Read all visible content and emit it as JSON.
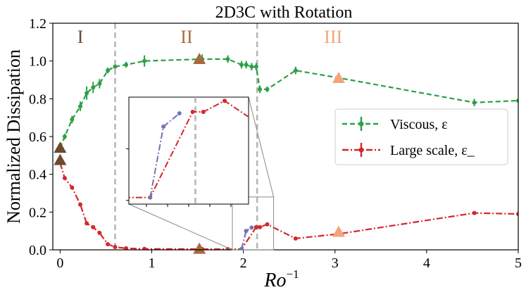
{
  "chart_data": {
    "type": "line",
    "title": "2D3C with Rotation",
    "xlabel": "Ro",
    "xlabel_sup": "−1",
    "ylabel": "Normalized Dissipation",
    "xlim": [
      -0.08,
      5.0
    ],
    "ylim": [
      0.0,
      1.2
    ],
    "xticks": [
      0,
      1,
      2,
      3,
      4,
      5
    ],
    "yticks": [
      0.0,
      0.2,
      0.4,
      0.6,
      0.8,
      1.0,
      1.2
    ],
    "xtick_labels": [
      "0",
      "1",
      "2",
      "3",
      "4",
      "5"
    ],
    "ytick_labels": [
      "0.0",
      "0.2",
      "0.4",
      "0.6",
      "0.8",
      "1.0",
      "1.2"
    ],
    "legend_position": "right",
    "vlines": [
      0.6,
      2.15
    ],
    "regions": [
      {
        "label": "I",
        "x": 0.22,
        "color": "#6b4a2f"
      },
      {
        "label": "II",
        "x": 1.38,
        "color": "#a86a3e"
      },
      {
        "label": "III",
        "x": 2.98,
        "color": "#f2a57a"
      }
    ],
    "series": [
      {
        "name": "Viscous, ε",
        "color": "#2ca048",
        "style": "dashed",
        "x": [
          0.0,
          0.05,
          0.13,
          0.22,
          0.29,
          0.36,
          0.43,
          0.52,
          0.6,
          0.72,
          0.92,
          1.55,
          1.83,
          1.98,
          2.03,
          2.09,
          2.14,
          2.18,
          2.26,
          2.57,
          3.05,
          4.52,
          5.0
        ],
        "y": [
          0.54,
          0.6,
          0.69,
          0.76,
          0.83,
          0.86,
          0.88,
          0.95,
          0.97,
          0.98,
          1.0,
          1.01,
          1.01,
          0.98,
          0.98,
          0.97,
          0.97,
          0.85,
          0.85,
          0.95,
          0.91,
          0.78,
          0.79
        ],
        "err": [
          0.02,
          0.015,
          0.02,
          0.025,
          0.035,
          0.03,
          0.025,
          0.015,
          0.01,
          0.015,
          0.03,
          0.025,
          0.02,
          0.02,
          0.02,
          0.02,
          0.02,
          0.02,
          0.015,
          0.02,
          0.01,
          0.02,
          0.01
        ]
      },
      {
        "name": "Large scale, ε_",
        "color": "#d62728",
        "style": "dashdot",
        "x": [
          0.0,
          0.05,
          0.13,
          0.22,
          0.29,
          0.36,
          0.43,
          0.52,
          0.6,
          0.72,
          0.92,
          1.55,
          1.83,
          1.98,
          2.14,
          2.18,
          2.26,
          2.57,
          3.05,
          4.52,
          5.0
        ],
        "y": [
          0.46,
          0.38,
          0.33,
          0.24,
          0.14,
          0.12,
          0.09,
          0.03,
          0.015,
          0.008,
          0.005,
          0.004,
          0.004,
          0.004,
          0.12,
          0.12,
          0.135,
          0.06,
          0.085,
          0.195,
          0.19
        ],
        "err": [
          0.01,
          0.008,
          0.008,
          0.008,
          0.006,
          0.006,
          0.006,
          0.005,
          0.004,
          0.003,
          0.002,
          0.002,
          0.002,
          0.002,
          0.01,
          0.01,
          0.01,
          0.006,
          0.006,
          0.008,
          0.006
        ]
      },
      {
        "name": "transition",
        "color": "#7471b8",
        "style": "dashdot",
        "in_legend": false,
        "x": [
          1.98,
          2.03,
          2.09
        ],
        "y": [
          0.004,
          0.1,
          0.118
        ],
        "err": [
          0,
          0,
          0
        ]
      }
    ],
    "triangles": [
      {
        "x": 0.0,
        "y": 0.54,
        "color": "#6b4a2f"
      },
      {
        "x": 0.0,
        "y": 0.475,
        "color": "#6b4a2f"
      },
      {
        "x": 1.52,
        "y": 1.01,
        "color": "#a86a3e"
      },
      {
        "x": 1.52,
        "y": 0.005,
        "color": "#a86a3e"
      },
      {
        "x": 3.04,
        "y": 0.91,
        "color": "#f2a57a"
      },
      {
        "x": 3.04,
        "y": 0.095,
        "color": "#f2a57a"
      }
    ],
    "inset": {
      "xlim": [
        1.9,
        2.35
      ],
      "ylim": [
        -0.005,
        0.14
      ],
      "source_box": {
        "x": [
          1.88,
          2.33
        ],
        "y": [
          0.0,
          0.28
        ]
      }
    }
  }
}
